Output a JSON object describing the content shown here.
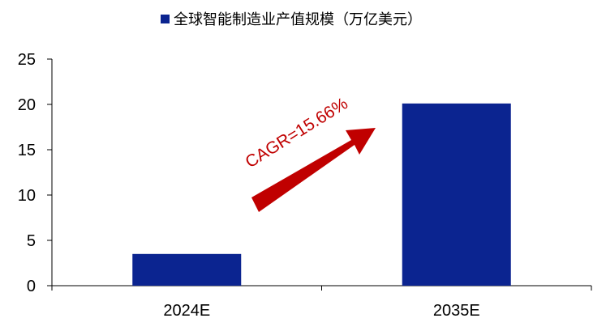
{
  "chart_data": {
    "type": "bar",
    "title": "",
    "xlabel": "",
    "ylabel": "",
    "categories": [
      "2024E",
      "2035E"
    ],
    "series": [
      {
        "name": "全球智能制造业产值规模（万亿美元）",
        "values": [
          3.5,
          20.1
        ],
        "color": "#0b2490"
      }
    ],
    "ylim": [
      0,
      25
    ],
    "yticks": [
      0,
      5,
      10,
      15,
      20,
      25
    ],
    "grid": false,
    "legend": "top-center",
    "annotation": {
      "text": "CAGR=15.66%",
      "color": "#c00000",
      "arrow_color": "#c00000"
    }
  }
}
